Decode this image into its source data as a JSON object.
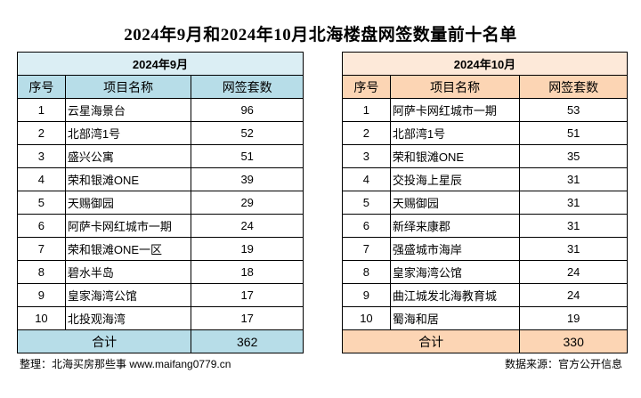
{
  "title": "2024年9月和2024年10月北海楼盘网签数量前十名单",
  "columns": [
    "序号",
    "项目名称",
    "网签套数"
  ],
  "tables": [
    {
      "month": "2024年9月",
      "rows": [
        {
          "rank": "1",
          "name": "云星海景台",
          "count": "96"
        },
        {
          "rank": "2",
          "name": "北部湾1号",
          "count": "52"
        },
        {
          "rank": "3",
          "name": "盛兴公寓",
          "count": "51"
        },
        {
          "rank": "4",
          "name": "荣和银滩ONE",
          "count": "39"
        },
        {
          "rank": "5",
          "name": "天赐御园",
          "count": "29"
        },
        {
          "rank": "6",
          "name": "阿萨卡网红城市一期",
          "count": "24"
        },
        {
          "rank": "7",
          "name": "荣和银滩ONE一区",
          "count": "19"
        },
        {
          "rank": "8",
          "name": "碧水半岛",
          "count": "18"
        },
        {
          "rank": "9",
          "name": "皇家海湾公馆",
          "count": "17"
        },
        {
          "rank": "10",
          "name": "北投观海湾",
          "count": "17"
        }
      ],
      "total_label": "合计",
      "total": "362",
      "colors": {
        "month_bg": "#dbeef4",
        "header_bg": "#b7dde8"
      }
    },
    {
      "month": "2024年10月",
      "rows": [
        {
          "rank": "1",
          "name": "阿萨卡网红城市一期",
          "count": "53"
        },
        {
          "rank": "2",
          "name": "北部湾1号",
          "count": "51"
        },
        {
          "rank": "3",
          "name": "荣和银滩ONE",
          "count": "35"
        },
        {
          "rank": "4",
          "name": "交投海上星辰",
          "count": "31"
        },
        {
          "rank": "5",
          "name": "天赐御园",
          "count": "31"
        },
        {
          "rank": "6",
          "name": "新绎来康郡",
          "count": "31"
        },
        {
          "rank": "7",
          "name": "强盛城市海岸",
          "count": "31"
        },
        {
          "rank": "8",
          "name": "皇家海湾公馆",
          "count": "24"
        },
        {
          "rank": "9",
          "name": "曲江城发北海教育城",
          "count": "24"
        },
        {
          "rank": "10",
          "name": "蜀海和居",
          "count": "19"
        }
      ],
      "total_label": "合计",
      "total": "330",
      "colors": {
        "month_bg": "#fde9d9",
        "header_bg": "#fcd5b4"
      }
    }
  ],
  "footer": {
    "left": "整理：北海买房那些事 www.maifang0779.cn",
    "right": "数据来源：官方公开信息"
  }
}
